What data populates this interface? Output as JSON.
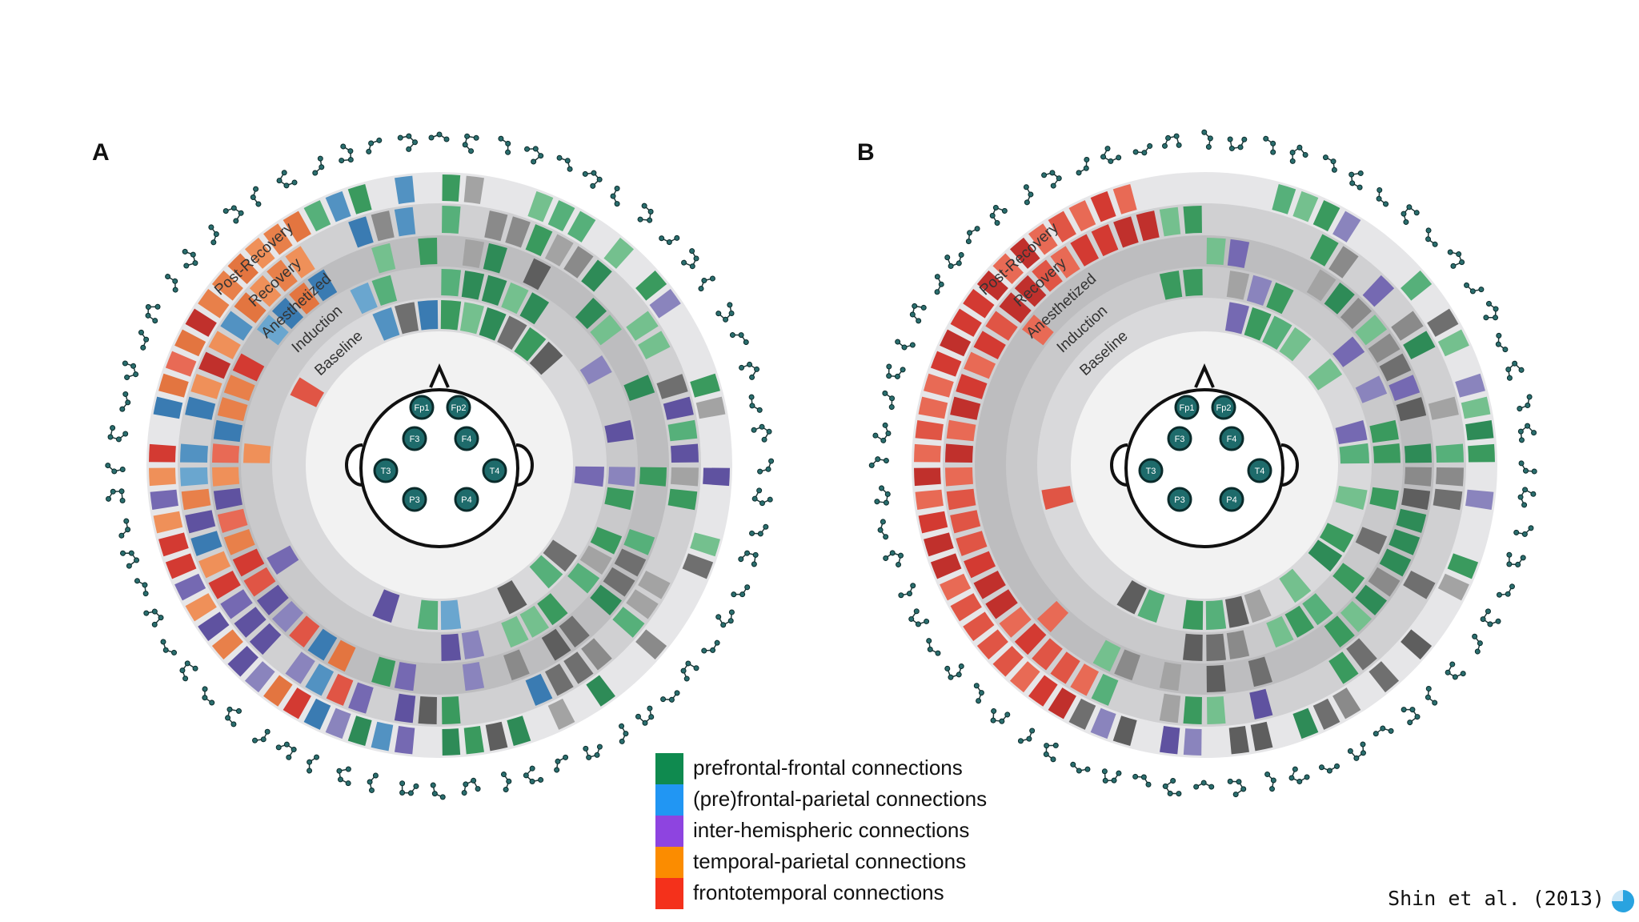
{
  "panels": [
    {
      "label": "A"
    },
    {
      "label": "B"
    }
  ],
  "ring_labels": [
    "Post-Recovery",
    "Recovery",
    "Anesthetized",
    "Induction",
    "Baseline"
  ],
  "electrodes": [
    "Fp1",
    "Fp2",
    "F3",
    "F4",
    "T3",
    "T4",
    "P3",
    "P4"
  ],
  "legend": [
    {
      "label": "prefrontal-frontal connections",
      "color": "#0f8a4f"
    },
    {
      "label": "(pre)frontal-parietal connections",
      "color": "#2196f3"
    },
    {
      "label": "inter-hemispheric connections",
      "color": "#8e44e0"
    },
    {
      "label": "temporal-parietal connections",
      "color": "#fb8c00"
    },
    {
      "label": "frontotemporal connections",
      "color": "#f4311b"
    }
  ],
  "citation": "Shin et al. (2013)"
}
